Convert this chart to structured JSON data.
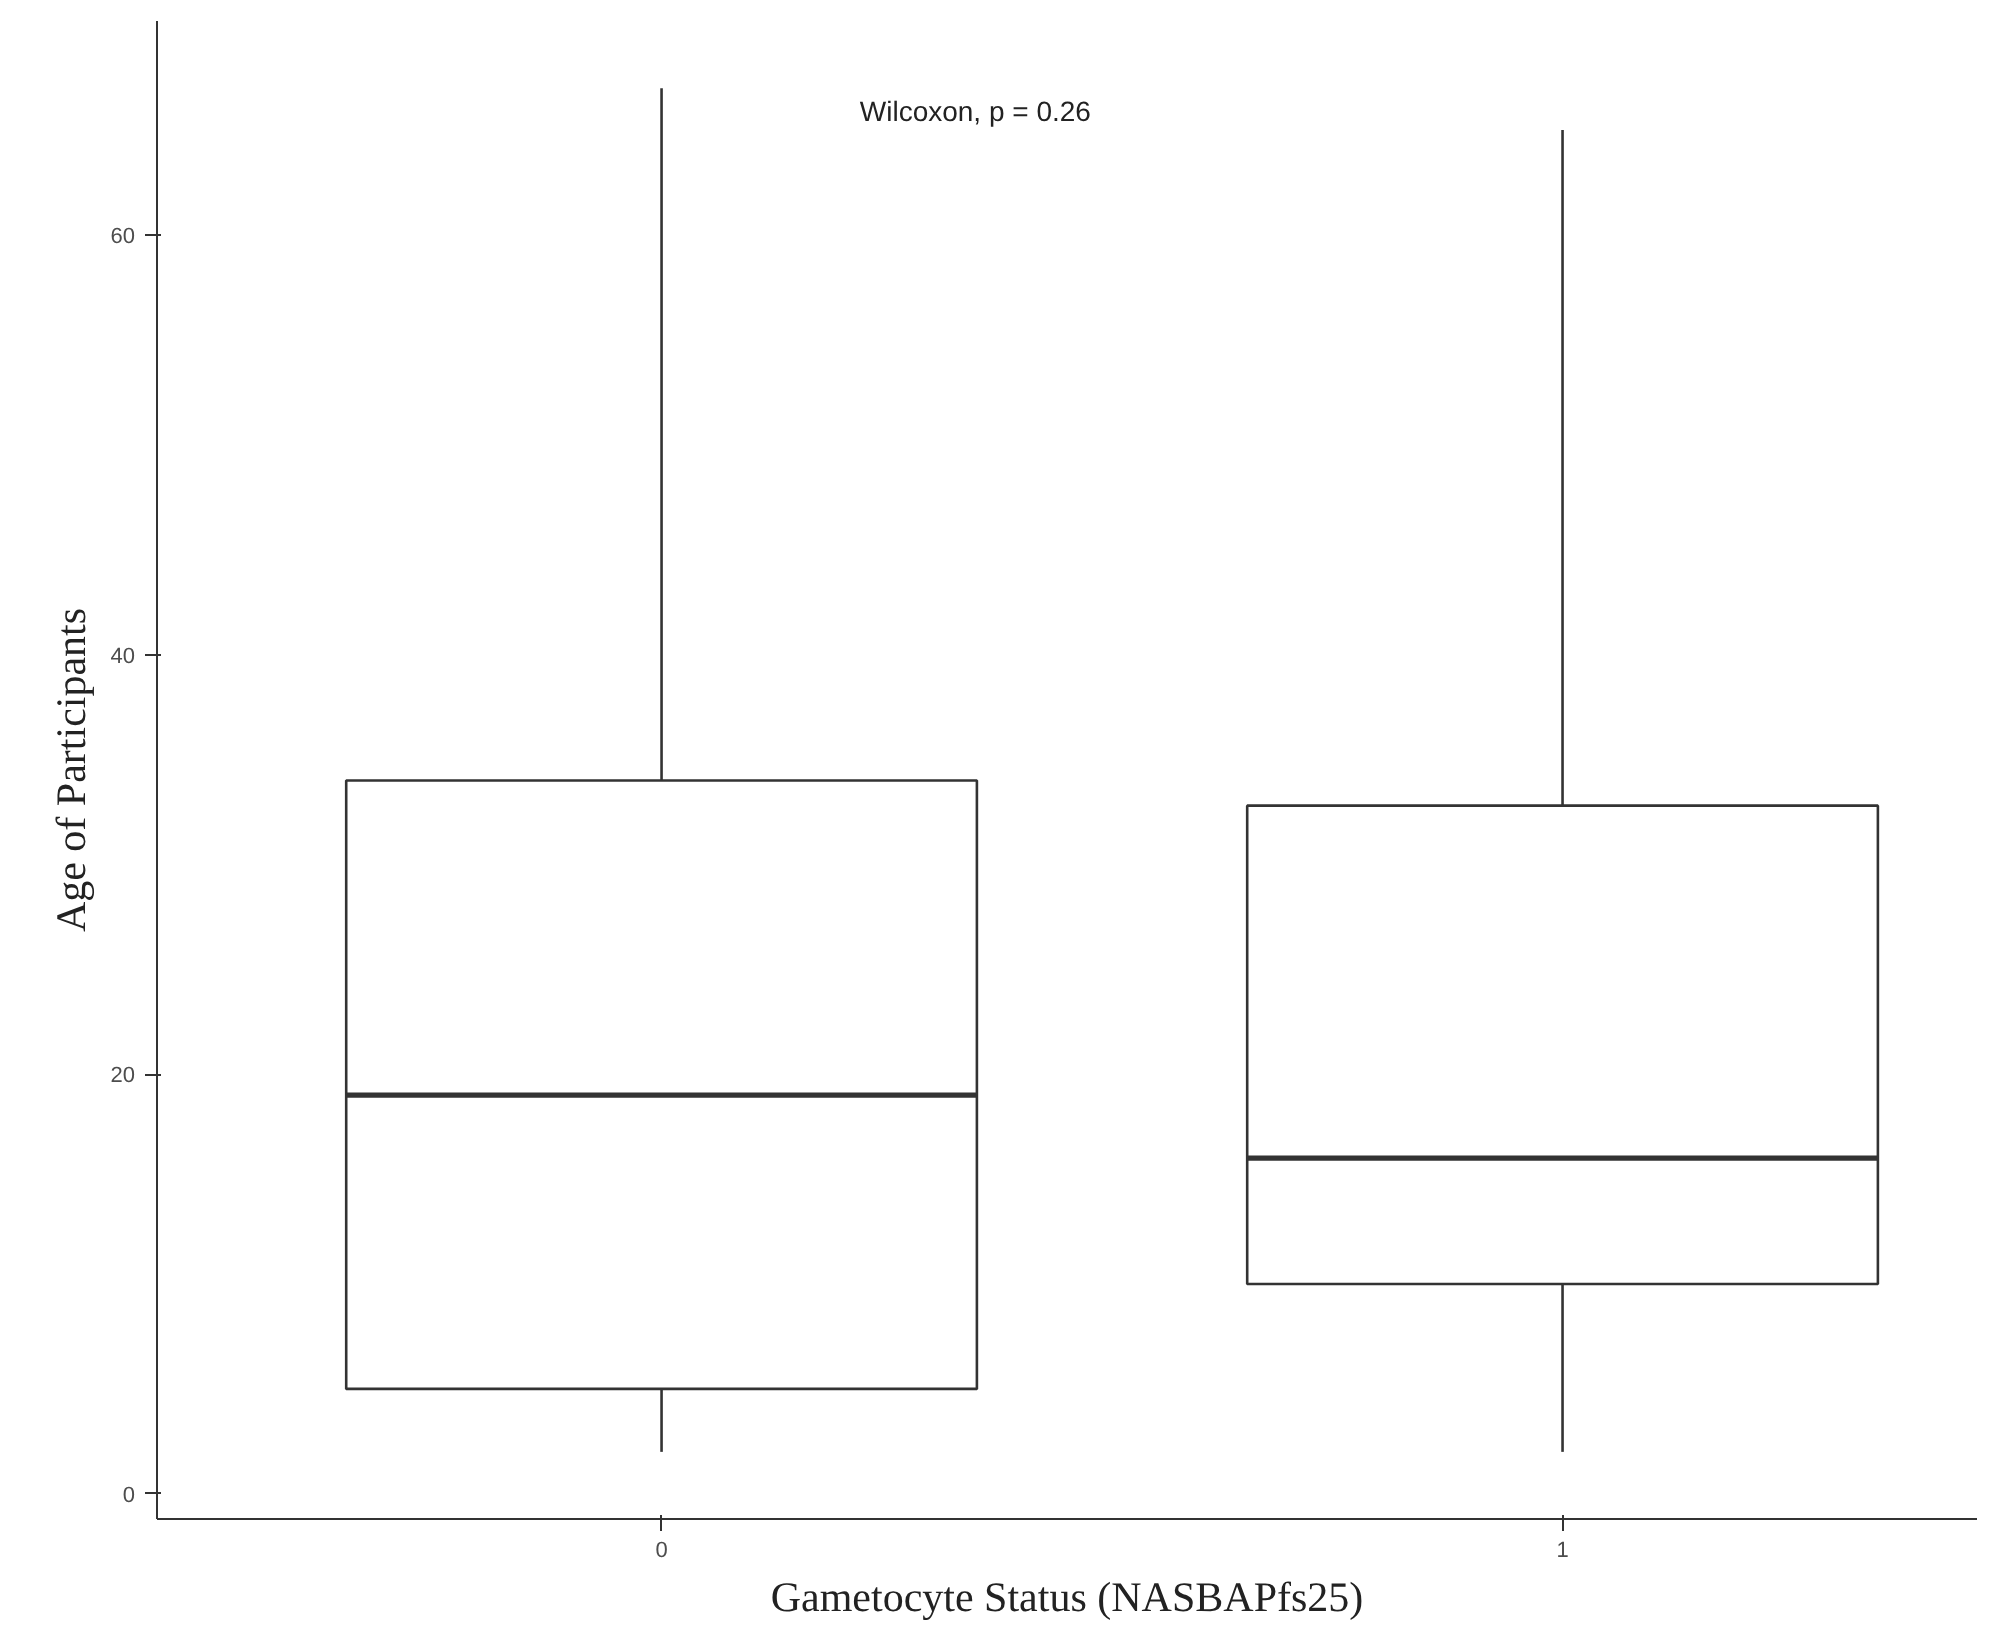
{
  "chart_data": {
    "type": "box",
    "xlabel": "Gametocyte Status (NASBAPfs25)",
    "ylabel": "Age of Participants",
    "categories": [
      "0",
      "1"
    ],
    "boxes": [
      {
        "low": 2,
        "q1": 5,
        "median": 19,
        "q3": 34,
        "high": 67
      },
      {
        "low": 2,
        "q1": 10,
        "median": 16,
        "q3": 32.8,
        "high": 65
      }
    ],
    "ylim": [
      -1.2,
      70.2
    ],
    "yticks": [
      0,
      20,
      40,
      60
    ],
    "annotations": [
      "Wilcoxon, p = 0.26"
    ]
  }
}
